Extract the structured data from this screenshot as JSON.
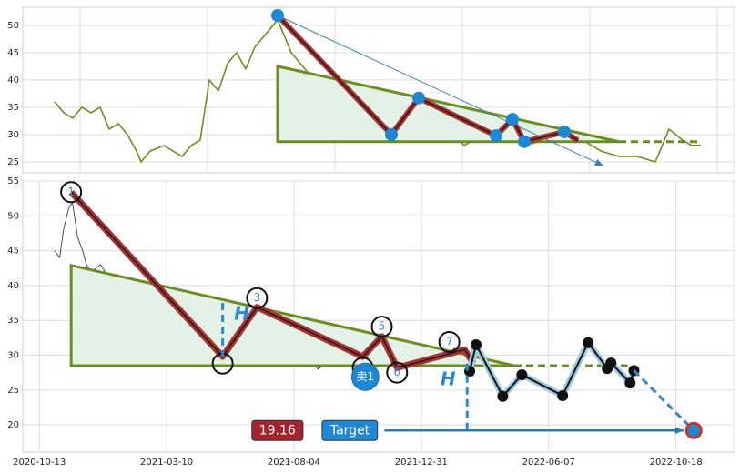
{
  "chart_data": [
    {
      "type": "line",
      "xlim": [
        0,
        782
      ],
      "ylim": [
        23,
        53.3
      ],
      "yticks": [
        25,
        30,
        35,
        40,
        45,
        50
      ],
      "xticks": [
        63,
        203,
        343,
        483,
        623,
        763
      ],
      "grid": true,
      "series": [
        {
          "color": "#6b8e23",
          "width": 1.6,
          "x": [
            35,
            45,
            55,
            65,
            75,
            85,
            95,
            105,
            115,
            125,
            130,
            140,
            155,
            165,
            175,
            185,
            195,
            205,
            215,
            225,
            235,
            245,
            255,
            265,
            275,
            280,
            295,
            315,
            330,
            345,
            360,
            375,
            395,
            415,
            435,
            455,
            475,
            485,
            505,
            525,
            540,
            550,
            575,
            595,
            615,
            635,
            655,
            675,
            695,
            710,
            725,
            735,
            745
          ],
          "values": [
            36,
            34,
            33,
            35,
            34,
            35,
            31,
            32,
            30,
            27,
            25,
            27,
            28,
            27,
            26,
            28,
            29,
            40,
            38,
            43,
            45,
            42,
            46,
            48,
            50,
            51,
            45,
            41,
            38,
            40,
            35,
            33,
            31,
            34,
            36,
            32,
            30,
            28,
            30,
            30,
            31,
            28,
            29,
            30,
            29,
            27,
            26,
            26,
            25,
            31,
            29,
            28,
            28
          ]
        },
        {
          "color": "#6b8e23",
          "width": 3,
          "fill": "#e3f1e6",
          "x": [
            280,
            280,
            655
          ],
          "values": [
            42.5,
            28.7,
            28.7
          ]
        },
        {
          "color": "#6b8e23",
          "width": 3,
          "dash": true,
          "x": [
            655,
            745
          ],
          "values": [
            28.7,
            28.7
          ]
        },
        {
          "color": "#3a87ad",
          "width": 1,
          "arrow": true,
          "x": [
            280,
            638
          ],
          "values": [
            51.8,
            24.3
          ]
        },
        {
          "color": "#a83232",
          "width": 6,
          "core": "#2a1a1a",
          "x": [
            280,
            405,
            435,
            520,
            538,
            551,
            595,
            610
          ],
          "values": [
            51.8,
            30,
            36.7,
            29.8,
            32.8,
            28.7,
            30.5,
            28.9
          ]
        },
        {
          "color": "#1e88d6",
          "marker": "dot",
          "size": 7,
          "x": [
            280,
            405,
            435,
            520,
            538,
            551,
            595
          ],
          "values": [
            51.8,
            30,
            36.7,
            29.8,
            32.8,
            28.7,
            30.5
          ]
        }
      ]
    },
    {
      "type": "line",
      "xlim": [
        -13,
        546
      ],
      "ylim": [
        16.1,
        55
      ],
      "yticks": [
        20,
        25,
        30,
        35,
        40,
        45,
        50,
        55
      ],
      "xticks": [
        {
          "value": 0,
          "label": "2020-10-13"
        },
        {
          "value": 100,
          "label": "2021-03-10"
        },
        {
          "value": 200,
          "label": "2021-08-04"
        },
        {
          "value": 300,
          "label": "2021-12-31"
        },
        {
          "value": 400,
          "label": "2022-06-07"
        },
        {
          "value": 500,
          "label": "2022-10-18"
        }
      ],
      "grid": true,
      "series": [
        {
          "color": "#2f3e50",
          "width": 0.9,
          "x": [
            12,
            16,
            19,
            23,
            26,
            30,
            34,
            37,
            41,
            48,
            55,
            62,
            69,
            76,
            84,
            91,
            98,
            105,
            112,
            119,
            126,
            134,
            141,
            148,
            155,
            162,
            169,
            176,
            184,
            191,
            198,
            205,
            212,
            219,
            226,
            234,
            241,
            248,
            255,
            262,
            269,
            276,
            284,
            291,
            298,
            305,
            312,
            319,
            326,
            334,
            341
          ],
          "values": [
            45,
            44,
            48,
            51,
            52,
            47,
            45,
            43,
            42,
            43,
            41,
            40,
            38,
            40,
            38,
            37,
            34,
            33,
            32,
            33,
            31,
            30,
            29,
            32,
            35,
            36,
            37,
            36,
            35,
            34,
            33,
            34,
            30,
            28,
            29,
            29,
            30,
            31,
            29,
            30,
            33,
            29,
            28,
            29,
            30,
            30,
            31,
            30,
            31,
            29,
            27
          ]
        },
        {
          "color": "#6b8e23",
          "width": 3,
          "fill": "#e3f1e6",
          "x": [
            25,
            25,
            373
          ],
          "values": [
            42.9,
            28.5,
            28.5
          ]
        },
        {
          "color": "#6b8e23",
          "width": 3,
          "dash": true,
          "x": [
            373,
            462
          ],
          "values": [
            28.5,
            28.5
          ]
        },
        {
          "color": "#a83232",
          "width": 7,
          "core": "#1a1a1a",
          "x": [
            25,
            144,
            171,
            254,
            269,
            281,
            334,
            341
          ],
          "values": [
            53.4,
            29.8,
            36.9,
            29.8,
            32.7,
            28.2,
            30.8,
            28.8
          ]
        },
        {
          "color": "#111111",
          "marker": "ring",
          "size": 11,
          "x": [
            25,
            144,
            171,
            254,
            269,
            281,
            322
          ],
          "values": [
            53.4,
            28.8,
            38.2,
            28.2,
            34.1,
            27.5,
            31.9
          ],
          "labels": [
            "1",
            null,
            "3",
            null,
            "5",
            "6",
            "7"
          ]
        },
        {
          "color": "#111111",
          "width": 2,
          "halo": "#9ecae1",
          "marker": "dot",
          "size": 6,
          "x": [
            338,
            343,
            364,
            379,
            411,
            431,
            446,
            449,
            464,
            467
          ],
          "values": [
            27.7,
            31.5,
            24.1,
            27.2,
            24.2,
            31.8,
            28.1,
            28.9,
            26.0,
            27.8
          ]
        },
        {
          "color": "#3a87c8",
          "width": 3,
          "dash": true,
          "arrow": true,
          "x": [
            467,
            514
          ],
          "values": [
            27.8,
            19.2
          ]
        },
        {
          "color": "#2b88cc",
          "width": 3,
          "dash": true,
          "x": [
            144,
            144
          ],
          "values": [
            37.5,
            29
          ]
        },
        {
          "color": "#2b88cc",
          "width": 3,
          "dash": true,
          "x": [
            336,
            336
          ],
          "values": [
            28.8,
            19.2
          ]
        },
        {
          "color": "#2b7bb9",
          "width": 2.5,
          "arrow": true,
          "x": [
            271,
            506
          ],
          "values": [
            19.2,
            19.2
          ]
        },
        {
          "color": "#1e88d6",
          "marker": "target",
          "size": 8,
          "x": [
            514
          ],
          "values": [
            19.2
          ]
        }
      ],
      "annotations": [
        {
          "text": "H",
          "x": 159,
          "y": 35.8,
          "color": "#2b88cc"
        },
        {
          "text": "H",
          "x": 321,
          "y": 26.4,
          "color": "#2b88cc"
        },
        {
          "text": "卖1",
          "x": 256,
          "y": 26.9,
          "badge": "#1e88d6"
        },
        {
          "text": "19.16",
          "x": 187,
          "y": 19.2,
          "box": "#a3232f"
        },
        {
          "text": "Target",
          "x": 244,
          "y": 19.2,
          "box": "#1e88d6"
        }
      ]
    }
  ]
}
